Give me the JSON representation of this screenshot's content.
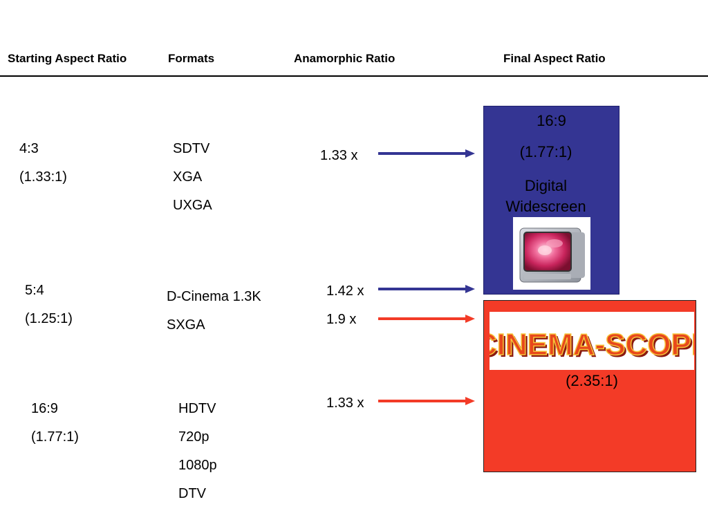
{
  "headers": {
    "starting": "Starting Aspect Ratio",
    "formats": "Formats",
    "anamorphic": "Anamorphic Ratio",
    "final": "Final Aspect Ratio"
  },
  "rows": [
    {
      "ratio": "4:3",
      "ratio_num": "(1.33:1)",
      "formats": [
        "SDTV",
        "XGA",
        "UXGA"
      ],
      "factor": "1.33 x"
    },
    {
      "ratio": "5:4",
      "ratio_num": "(1.25:1)",
      "formats": [
        "D-Cinema 1.3K",
        "SXGA"
      ],
      "factor_a": "1.42 x",
      "factor_b": "1.9 x"
    },
    {
      "ratio": "16:9",
      "ratio_num": "(1.77:1)",
      "formats": [
        "HDTV",
        "720p",
        "1080p",
        "DTV"
      ],
      "factor": "1.33 x"
    }
  ],
  "final": {
    "widescreen": {
      "ratio": "16:9",
      "ratio_num": "(1.77:1)",
      "label_line1": "Digital",
      "label_line2": "Widescreen",
      "color": "#343593"
    },
    "cinemascope": {
      "logo_text": "CINEMA-SCOPE",
      "ratio_num": "(2.35:1)",
      "color": "#f33b27"
    }
  },
  "colors": {
    "blue_arrow": "#343593",
    "red_arrow": "#f33b27"
  }
}
